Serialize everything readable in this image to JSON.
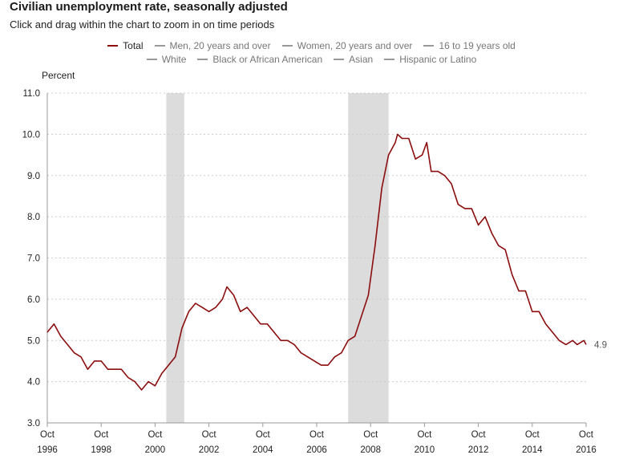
{
  "title": "Civilian unemployment rate, seasonally adjusted",
  "subtitle": "Click and drag within the chart to zoom in on time periods",
  "legend": {
    "row1": [
      {
        "label": "Total",
        "active": true
      },
      {
        "label": "Men, 20 years and over",
        "active": false
      },
      {
        "label": "Women, 20 years and over",
        "active": false
      },
      {
        "label": "16 to 19 years old",
        "active": false
      }
    ],
    "row2": [
      {
        "label": "White",
        "active": false
      },
      {
        "label": "Black or African American",
        "active": false
      },
      {
        "label": "Asian",
        "active": false
      },
      {
        "label": "Hispanic or Latino",
        "active": false
      }
    ]
  },
  "colors": {
    "series": "#8b0d0d",
    "recession": "#dcdcdc",
    "grid": "#cccccc",
    "axis": "#999999"
  },
  "chart_data": {
    "type": "line",
    "ylabel": "Percent",
    "ylim": [
      3.0,
      11.0
    ],
    "yticks": [
      "3.0",
      "4.0",
      "5.0",
      "6.0",
      "7.0",
      "8.0",
      "9.0",
      "10.0",
      "11.0"
    ],
    "xlim": [
      "1996-10",
      "2016-10"
    ],
    "xticks": [
      {
        "month": "Oct",
        "year": "1996",
        "date": "1996-10"
      },
      {
        "month": "Oct",
        "year": "1998",
        "date": "1998-10"
      },
      {
        "month": "Oct",
        "year": "2000",
        "date": "2000-10"
      },
      {
        "month": "Oct",
        "year": "2002",
        "date": "2002-10"
      },
      {
        "month": "Oct",
        "year": "2004",
        "date": "2004-10"
      },
      {
        "month": "Oct",
        "year": "2006",
        "date": "2006-10"
      },
      {
        "month": "Oct",
        "year": "2008",
        "date": "2008-10"
      },
      {
        "month": "Oct",
        "year": "2010",
        "date": "2010-10"
      },
      {
        "month": "Oct",
        "year": "2012",
        "date": "2012-10"
      },
      {
        "month": "Oct",
        "year": "2014",
        "date": "2014-10"
      },
      {
        "month": "Oct",
        "year": "2016",
        "date": "2016-10"
      }
    ],
    "recessions": [
      {
        "start": "2001-03",
        "end": "2001-11"
      },
      {
        "start": "2007-12",
        "end": "2009-06"
      }
    ],
    "grid": true,
    "end_label": "4.9",
    "series": [
      {
        "name": "Total",
        "points": [
          [
            "1996-10",
            5.2
          ],
          [
            "1997-01",
            5.4
          ],
          [
            "1997-04",
            5.1
          ],
          [
            "1997-07",
            4.9
          ],
          [
            "1997-10",
            4.7
          ],
          [
            "1998-01",
            4.6
          ],
          [
            "1998-04",
            4.3
          ],
          [
            "1998-07",
            4.5
          ],
          [
            "1998-10",
            4.5
          ],
          [
            "1999-01",
            4.3
          ],
          [
            "1999-04",
            4.3
          ],
          [
            "1999-07",
            4.3
          ],
          [
            "1999-10",
            4.1
          ],
          [
            "2000-01",
            4.0
          ],
          [
            "2000-04",
            3.8
          ],
          [
            "2000-07",
            4.0
          ],
          [
            "2000-10",
            3.9
          ],
          [
            "2001-01",
            4.2
          ],
          [
            "2001-04",
            4.4
          ],
          [
            "2001-07",
            4.6
          ],
          [
            "2001-10",
            5.3
          ],
          [
            "2002-01",
            5.7
          ],
          [
            "2002-04",
            5.9
          ],
          [
            "2002-07",
            5.8
          ],
          [
            "2002-10",
            5.7
          ],
          [
            "2003-01",
            5.8
          ],
          [
            "2003-04",
            6.0
          ],
          [
            "2003-06",
            6.3
          ],
          [
            "2003-09",
            6.1
          ],
          [
            "2003-12",
            5.7
          ],
          [
            "2004-03",
            5.8
          ],
          [
            "2004-06",
            5.6
          ],
          [
            "2004-09",
            5.4
          ],
          [
            "2004-12",
            5.4
          ],
          [
            "2005-03",
            5.2
          ],
          [
            "2005-06",
            5.0
          ],
          [
            "2005-09",
            5.0
          ],
          [
            "2005-12",
            4.9
          ],
          [
            "2006-03",
            4.7
          ],
          [
            "2006-06",
            4.6
          ],
          [
            "2006-09",
            4.5
          ],
          [
            "2006-12",
            4.4
          ],
          [
            "2007-03",
            4.4
          ],
          [
            "2007-06",
            4.6
          ],
          [
            "2007-09",
            4.7
          ],
          [
            "2007-12",
            5.0
          ],
          [
            "2008-03",
            5.1
          ],
          [
            "2008-06",
            5.6
          ],
          [
            "2008-09",
            6.1
          ],
          [
            "2008-12",
            7.3
          ],
          [
            "2009-03",
            8.7
          ],
          [
            "2009-06",
            9.5
          ],
          [
            "2009-09",
            9.8
          ],
          [
            "2009-10",
            10.0
          ],
          [
            "2009-12",
            9.9
          ],
          [
            "2010-03",
            9.9
          ],
          [
            "2010-06",
            9.4
          ],
          [
            "2010-09",
            9.5
          ],
          [
            "2010-11",
            9.8
          ],
          [
            "2011-01",
            9.1
          ],
          [
            "2011-04",
            9.1
          ],
          [
            "2011-07",
            9.0
          ],
          [
            "2011-10",
            8.8
          ],
          [
            "2012-01",
            8.3
          ],
          [
            "2012-04",
            8.2
          ],
          [
            "2012-07",
            8.2
          ],
          [
            "2012-10",
            7.8
          ],
          [
            "2013-01",
            8.0
          ],
          [
            "2013-04",
            7.6
          ],
          [
            "2013-07",
            7.3
          ],
          [
            "2013-10",
            7.2
          ],
          [
            "2014-01",
            6.6
          ],
          [
            "2014-04",
            6.2
          ],
          [
            "2014-07",
            6.2
          ],
          [
            "2014-10",
            5.7
          ],
          [
            "2015-01",
            5.7
          ],
          [
            "2015-04",
            5.4
          ],
          [
            "2015-07",
            5.2
          ],
          [
            "2015-10",
            5.0
          ],
          [
            "2016-01",
            4.9
          ],
          [
            "2016-04",
            5.0
          ],
          [
            "2016-06",
            4.9
          ],
          [
            "2016-09",
            5.0
          ],
          [
            "2016-10",
            4.9
          ]
        ]
      }
    ]
  }
}
